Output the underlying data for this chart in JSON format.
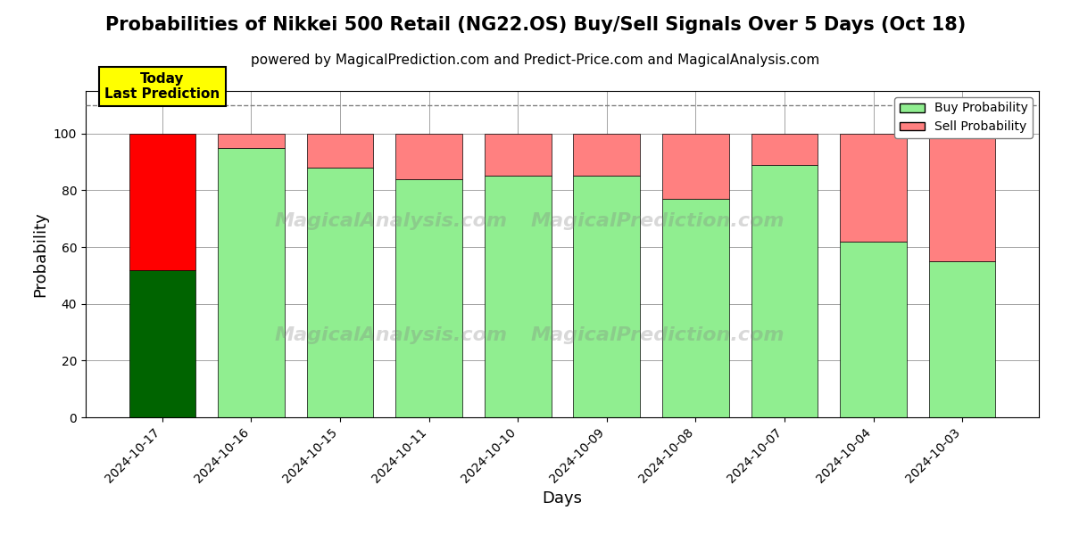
{
  "title": "Probabilities of Nikkei 500 Retail (NG22.OS) Buy/Sell Signals Over 5 Days (Oct 18)",
  "subtitle": "powered by MagicalPrediction.com and Predict-Price.com and MagicalAnalysis.com",
  "xlabel": "Days",
  "ylabel": "Probability",
  "categories": [
    "2024-10-17",
    "2024-10-16",
    "2024-10-15",
    "2024-10-11",
    "2024-10-10",
    "2024-10-09",
    "2024-10-08",
    "2024-10-07",
    "2024-10-04",
    "2024-10-03"
  ],
  "buy_values": [
    52,
    95,
    88,
    84,
    85,
    85,
    77,
    89,
    62,
    55
  ],
  "sell_values": [
    48,
    5,
    12,
    16,
    15,
    15,
    23,
    11,
    38,
    45
  ],
  "today_label": "Today\nLast Prediction",
  "dashed_line_y": 110,
  "ylim": [
    0,
    115
  ],
  "yticks": [
    0,
    20,
    40,
    60,
    80,
    100
  ],
  "legend_buy_label": "Buy Probability",
  "legend_sell_label": "Sell Probability",
  "background_color": "#ffffff",
  "title_fontsize": 15,
  "subtitle_fontsize": 11
}
